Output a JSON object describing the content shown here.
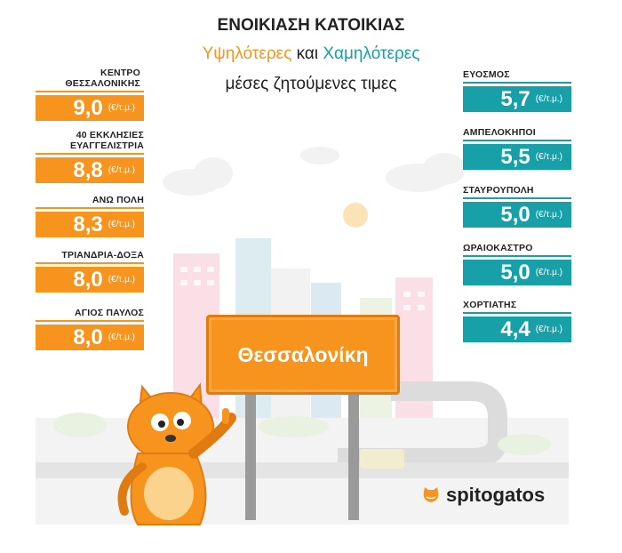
{
  "header": {
    "title": "ΕΝΟΙΚΙΑΣΗ ΚΑΤΟΙΚΙΑΣ",
    "highest": "Υψηλότερες",
    "and": "και",
    "lowest": "Χαμηλότερες",
    "subtitle_line2": "μέσες ζητούμενες τιμες"
  },
  "highest_areas": [
    {
      "name": "ΚΕΝΤΡΟ ΘΕΣΣΑΛΟΝΙΚΗΣ",
      "value": "9,0",
      "unit": "(€/τ.μ.)"
    },
    {
      "name": "40 ΕΚΚΛΗΣΙΕΣ ΕΥΑΓΓΕΛΙΣΤΡΙΑ",
      "value": "8,8",
      "unit": "(€/τ.μ.)"
    },
    {
      "name": "ΑΝΩ ΠΟΛΗ",
      "value": "8,3",
      "unit": "(€/τ.μ.)"
    },
    {
      "name": "ΤΡΙΑΝΔΡΙΑ-ΔΟΞΑ",
      "value": "8,0",
      "unit": "(€/τ.μ.)"
    },
    {
      "name": "ΑΓΙΟΣ ΠΑΥΛΟΣ",
      "value": "8,0",
      "unit": "(€/τ.μ.)"
    }
  ],
  "lowest_areas": [
    {
      "name": "ΕΥΟΣΜΟΣ",
      "value": "5,7",
      "unit": "(€/τ.μ.)"
    },
    {
      "name": "ΑΜΠΕΛΟΚΗΠΟΙ",
      "value": "5,5",
      "unit": "(€/τ.μ.)"
    },
    {
      "name": "ΣΤΑΥΡΟΥΠΟΛΗ",
      "value": "5,0",
      "unit": "(€/τ.μ.)"
    },
    {
      "name": "ΩΡΑΙΟΚΑΣΤΡΟ",
      "value": "5,0",
      "unit": "(€/τ.μ.)"
    },
    {
      "name": "ΧΟΡΤΙΑΤΗΣ",
      "value": "4,4",
      "unit": "(€/τ.μ.)"
    }
  ],
  "sign_text": "Θεσσαλονίκη",
  "brand": "spitogatos",
  "colors": {
    "highest": "#f7941d",
    "lowest": "#17a0a8"
  }
}
